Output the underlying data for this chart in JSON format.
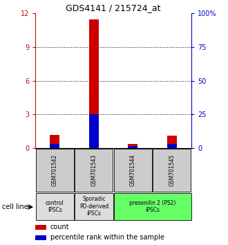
{
  "title": "GDS4141 / 215724_at",
  "samples": [
    "GSM701542",
    "GSM701543",
    "GSM701544",
    "GSM701545"
  ],
  "count_values": [
    1.2,
    11.5,
    0.4,
    1.1
  ],
  "percentile_values": [
    3.0,
    25.5,
    1.8,
    3.0
  ],
  "ylim_left": [
    0,
    12
  ],
  "ylim_right": [
    0,
    100
  ],
  "yticks_left": [
    0,
    3,
    6,
    9,
    12
  ],
  "ytick_labels_left": [
    "0",
    "3",
    "6",
    "9",
    "12"
  ],
  "yticks_right": [
    0,
    25,
    50,
    75,
    100
  ],
  "ytick_labels_right": [
    "0",
    "25",
    "50",
    "75",
    "100%"
  ],
  "count_color": "#cc0000",
  "percentile_color": "#0000cc",
  "groups": [
    {
      "label": "control\nIPSCs",
      "indices": [
        0
      ],
      "color": "#dddddd"
    },
    {
      "label": "Sporadic\nPD-derived\niPSCs",
      "indices": [
        1
      ],
      "color": "#dddddd"
    },
    {
      "label": "presenilin 2 (PS2)\niPSCs",
      "indices": [
        2,
        3
      ],
      "color": "#66ff66"
    }
  ],
  "cell_line_label": "cell line",
  "legend_count_label": "count",
  "legend_percentile_label": "percentile rank within the sample",
  "left_axis_color": "#cc0000",
  "right_axis_color": "#0000cc",
  "sample_box_color": "#cccccc",
  "bar_width": 0.25
}
